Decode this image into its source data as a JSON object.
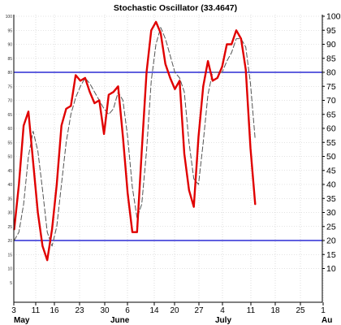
{
  "chart_data": {
    "type": "line",
    "title": "Stochastic Oscillator (33.4647)",
    "xlabel": "",
    "ylabel": "",
    "ylim": [
      2,
      105
    ],
    "yticks": [
      10,
      15,
      20,
      25,
      30,
      35,
      40,
      45,
      50,
      55,
      60,
      65,
      70,
      75,
      80,
      85,
      90,
      95,
      100
    ],
    "yticks_left": [
      5,
      10,
      15,
      20,
      25,
      30,
      35,
      40,
      45,
      50,
      55,
      60,
      65,
      70,
      75,
      80,
      85,
      90,
      95,
      100
    ],
    "grid": true,
    "grid_style": "dotted",
    "reference_lines": [
      {
        "value": 80,
        "color": "#0000cc"
      },
      {
        "value": 20,
        "color": "#0000cc"
      }
    ],
    "x_day_labels": [
      "3",
      "11",
      "16",
      "23",
      "30",
      "6",
      "14",
      "20",
      "27",
      "4",
      "11",
      "18",
      "25",
      "1"
    ],
    "x_month_labels": [
      "May",
      "June",
      "July",
      "Au"
    ],
    "series": [
      {
        "role": "percent_k",
        "color": "#e00000",
        "style": "solid",
        "values": [
          24,
          40,
          61,
          66,
          48,
          30,
          18,
          13,
          24,
          40,
          61,
          67,
          68,
          79,
          77,
          78,
          73,
          69,
          70,
          58,
          72,
          73,
          75,
          57,
          37,
          23,
          23,
          52,
          80,
          95,
          98,
          94,
          83,
          78,
          74,
          77,
          51,
          38,
          32,
          57,
          75,
          84,
          77,
          78,
          82,
          90,
          90,
          95,
          92,
          81,
          53,
          33
        ]
      },
      {
        "role": "percent_d",
        "color": "#555555",
        "style": "dashed",
        "values": [
          20,
          23,
          33,
          50,
          59,
          52,
          38,
          23,
          18,
          25,
          40,
          55,
          65,
          71,
          75,
          78,
          76,
          73,
          70,
          67,
          65,
          67,
          73,
          70,
          57,
          39,
          28,
          33,
          52,
          77,
          90,
          96,
          92,
          86,
          80,
          78,
          73,
          55,
          42,
          40,
          55,
          72,
          80,
          80,
          80,
          84,
          87,
          92,
          92,
          89,
          76,
          56
        ]
      }
    ]
  }
}
